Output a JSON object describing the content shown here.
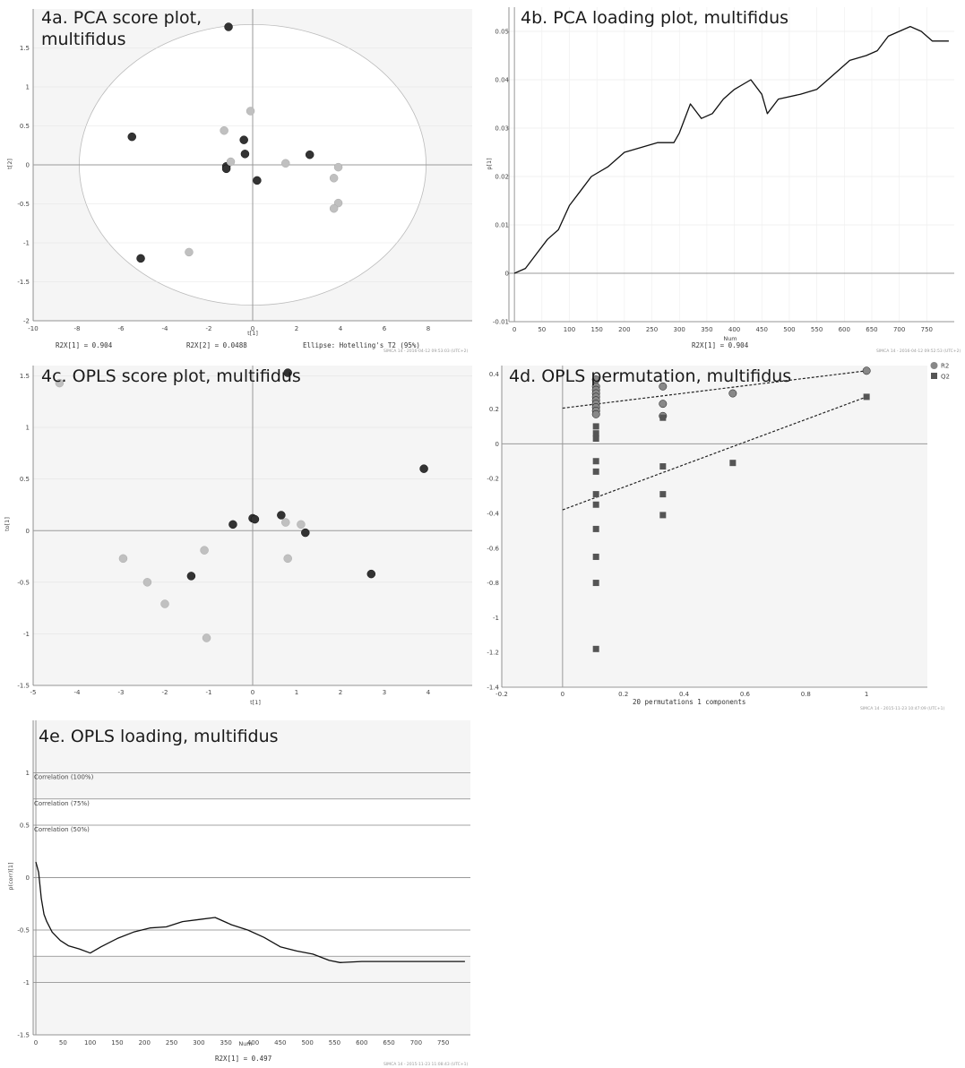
{
  "chart_data": [
    {
      "id": "p4a",
      "type": "scatter",
      "title": "4a. PCA score plot,\nmultifidus",
      "xlabel": "t[1]",
      "ylabel": "t[2]",
      "xlim": [
        -10,
        10
      ],
      "ylim": [
        -2,
        2
      ],
      "xticks": [
        -10,
        -8,
        -6,
        -4,
        -2,
        0,
        2,
        4,
        6,
        8
      ],
      "yticks": [
        -2,
        -1.5,
        -1,
        -0.5,
        0,
        0.5,
        1,
        1.5
      ],
      "ellipse": {
        "rx": 7.9,
        "ry": 1.8
      },
      "footer_left": "R2X[1] = 0.904",
      "footer_mid": "R2X[2] = 0.0488",
      "footer_right": "Ellipse: Hotelling's T2 (95%)",
      "watermark": "SIMCA 14 - 2016-04-12 09:53:03 (UTC+2)",
      "series": [
        {
          "color": "#333333",
          "points": [
            [
              -1.1,
              1.77
            ],
            [
              -5.5,
              0.36
            ],
            [
              -0.4,
              0.32
            ],
            [
              -0.35,
              0.14
            ],
            [
              -1.2,
              -0.02
            ],
            [
              -1.2,
              -0.05
            ],
            [
              2.6,
              0.13
            ],
            [
              0.2,
              -0.2
            ],
            [
              -5.1,
              -1.2
            ]
          ]
        },
        {
          "color": "#c0c0c0",
          "points": [
            [
              -0.1,
              0.69
            ],
            [
              -1.3,
              0.44
            ],
            [
              -1.0,
              0.04
            ],
            [
              1.5,
              0.02
            ],
            [
              3.9,
              -0.03
            ],
            [
              3.7,
              -0.17
            ],
            [
              3.9,
              -0.49
            ],
            [
              3.7,
              -0.56
            ],
            [
              -2.9,
              -1.12
            ]
          ]
        }
      ]
    },
    {
      "id": "p4b",
      "type": "line",
      "title": "4b. PCA loading plot, multifidus",
      "xlabel": "Num",
      "ylabel": "p[1]",
      "xlim": [
        -10,
        800
      ],
      "ylim": [
        -0.01,
        0.055
      ],
      "xticks": [
        0,
        50,
        100,
        150,
        200,
        250,
        300,
        350,
        400,
        450,
        500,
        550,
        600,
        650,
        700,
        750
      ],
      "yticks": [
        -0.01,
        0,
        0.01,
        0.02,
        0.03,
        0.04,
        0.05
      ],
      "footer_left": "R2X[1] = 0.904",
      "watermark": "SIMCA 14 - 2016-04-12 09:52:53 (UTC+2)",
      "series": [
        {
          "color": "#111111",
          "points": [
            [
              0,
              0
            ],
            [
              20,
              0.001
            ],
            [
              40,
              0.004
            ],
            [
              60,
              0.007
            ],
            [
              80,
              0.009
            ],
            [
              100,
              0.014
            ],
            [
              120,
              0.017
            ],
            [
              140,
              0.02
            ],
            [
              170,
              0.022
            ],
            [
              200,
              0.025
            ],
            [
              230,
              0.026
            ],
            [
              260,
              0.027
            ],
            [
              290,
              0.027
            ],
            [
              300,
              0.029
            ],
            [
              320,
              0.035
            ],
            [
              340,
              0.032
            ],
            [
              360,
              0.033
            ],
            [
              380,
              0.036
            ],
            [
              400,
              0.038
            ],
            [
              430,
              0.04
            ],
            [
              450,
              0.037
            ],
            [
              460,
              0.033
            ],
            [
              480,
              0.036
            ],
            [
              520,
              0.037
            ],
            [
              550,
              0.038
            ],
            [
              580,
              0.041
            ],
            [
              610,
              0.044
            ],
            [
              640,
              0.045
            ],
            [
              660,
              0.046
            ],
            [
              680,
              0.049
            ],
            [
              700,
              0.05
            ],
            [
              720,
              0.051
            ],
            [
              740,
              0.05
            ],
            [
              760,
              0.048
            ],
            [
              790,
              0.048
            ]
          ]
        }
      ]
    },
    {
      "id": "p4c",
      "type": "scatter",
      "title": "4c. OPLS score plot, multifidus",
      "xlabel": "t[1]",
      "ylabel": "to[1]",
      "xlim": [
        -5,
        5
      ],
      "ylim": [
        -1.5,
        1.6
      ],
      "xticks": [
        -5,
        -4,
        -3,
        -2,
        -1,
        0,
        1,
        2,
        3,
        4
      ],
      "yticks": [
        -1.5,
        -1,
        -0.5,
        0,
        0.5,
        1,
        1.5
      ],
      "series": [
        {
          "color": "#333333",
          "points": [
            [
              0.8,
              1.53
            ],
            [
              3.9,
              0.6
            ],
            [
              0.65,
              0.15
            ],
            [
              0,
              0.12
            ],
            [
              0.05,
              0.11
            ],
            [
              -0.45,
              0.06
            ],
            [
              1.2,
              -0.02
            ],
            [
              -1.4,
              -0.44
            ],
            [
              2.7,
              -0.42
            ]
          ]
        },
        {
          "color": "#c0c0c0",
          "points": [
            [
              -4.4,
              1.43
            ],
            [
              0.75,
              0.08
            ],
            [
              1.1,
              0.06
            ],
            [
              -1.1,
              -0.19
            ],
            [
              -2.95,
              -0.27
            ],
            [
              0.8,
              -0.27
            ],
            [
              -2.4,
              -0.5
            ],
            [
              -2.0,
              -0.71
            ],
            [
              -1.05,
              -1.04
            ]
          ]
        }
      ]
    },
    {
      "id": "p4d",
      "type": "scatter",
      "title": "4d. OPLS permutation, multifidus",
      "xlabel": "20 permutations 1 components",
      "ylabel": "",
      "xlim": [
        -0.2,
        1.2
      ],
      "ylim": [
        -1.4,
        0.45
      ],
      "xticks": [
        -0.2,
        0,
        0.2,
        0.4,
        0.6,
        0.8,
        1
      ],
      "yticks": [
        -1.4,
        -1.2,
        -1,
        -0.8,
        -0.6,
        -0.4,
        -0.2,
        0,
        0.2,
        0.4
      ],
      "legend": [
        "R2",
        "Q2"
      ],
      "legend_position": "top-right",
      "watermark": "SIMCA 14 - 2015-11-23 10:47:09 (UTC+1)",
      "regression": [
        {
          "name": "R2",
          "from": [
            0,
            0.205
          ],
          "to": [
            1,
            0.42
          ]
        },
        {
          "name": "Q2",
          "from": [
            0,
            -0.38
          ],
          "to": [
            1,
            0.27
          ]
        }
      ],
      "series": [
        {
          "name": "R2",
          "marker": "circle",
          "color": "#888888",
          "points": [
            [
              0.11,
              0.37
            ],
            [
              0.11,
              0.33
            ],
            [
              0.11,
              0.31
            ],
            [
              0.11,
              0.29
            ],
            [
              0.11,
              0.27
            ],
            [
              0.11,
              0.25
            ],
            [
              0.11,
              0.23
            ],
            [
              0.11,
              0.21
            ],
            [
              0.11,
              0.19
            ],
            [
              0.11,
              0.17
            ],
            [
              0.33,
              0.33
            ],
            [
              0.33,
              0.23
            ],
            [
              0.33,
              0.16
            ],
            [
              0.56,
              0.29
            ],
            [
              1,
              0.42
            ]
          ]
        },
        {
          "name": "Q2",
          "marker": "square",
          "color": "#555555",
          "points": [
            [
              0.11,
              0.1
            ],
            [
              0.11,
              0.06
            ],
            [
              0.11,
              0.03
            ],
            [
              0.11,
              -0.1
            ],
            [
              0.11,
              -0.16
            ],
            [
              0.11,
              -0.29
            ],
            [
              0.11,
              -0.35
            ],
            [
              0.11,
              -0.49
            ],
            [
              0.11,
              -0.65
            ],
            [
              0.11,
              -0.8
            ],
            [
              0.11,
              -1.18
            ],
            [
              0.33,
              0.15
            ],
            [
              0.33,
              -0.13
            ],
            [
              0.33,
              -0.29
            ],
            [
              0.33,
              -0.41
            ],
            [
              0.56,
              -0.11
            ],
            [
              1,
              0.27
            ]
          ]
        }
      ]
    },
    {
      "id": "p4e",
      "type": "line",
      "title": "4e. OPLS loading, multifidus",
      "xlabel": "Num",
      "ylabel": "p(corr)[1]",
      "xlim": [
        -5,
        800
      ],
      "ylim": [
        -1.5,
        1.5
      ],
      "xticks": [
        0,
        50,
        100,
        150,
        200,
        250,
        300,
        350,
        400,
        450,
        500,
        550,
        600,
        650,
        700,
        750
      ],
      "yticks": [
        -1.5,
        -1,
        -0.5,
        0,
        0.5,
        1
      ],
      "reference_lines": [
        {
          "y": 1,
          "label": "Correlation (100%)"
        },
        {
          "y": 0.75,
          "label": "Correlation (75%)"
        },
        {
          "y": 0.5,
          "label": "Correlation (50%)"
        }
      ],
      "footer_left": "R2X[1] = 0.497",
      "watermark": "SIMCA 14 - 2015-11-23 11:08:43 (UTC+1)",
      "series": [
        {
          "color": "#111111",
          "points": [
            [
              0,
              0.15
            ],
            [
              5,
              0.05
            ],
            [
              10,
              -0.2
            ],
            [
              15,
              -0.35
            ],
            [
              20,
              -0.42
            ],
            [
              30,
              -0.52
            ],
            [
              45,
              -0.6
            ],
            [
              60,
              -0.65
            ],
            [
              80,
              -0.68
            ],
            [
              100,
              -0.72
            ],
            [
              120,
              -0.66
            ],
            [
              150,
              -0.58
            ],
            [
              180,
              -0.52
            ],
            [
              210,
              -0.48
            ],
            [
              240,
              -0.47
            ],
            [
              270,
              -0.42
            ],
            [
              300,
              -0.4
            ],
            [
              330,
              -0.38
            ],
            [
              360,
              -0.45
            ],
            [
              390,
              -0.5
            ],
            [
              420,
              -0.57
            ],
            [
              450,
              -0.66
            ],
            [
              480,
              -0.7
            ],
            [
              510,
              -0.73
            ],
            [
              540,
              -0.79
            ],
            [
              560,
              -0.81
            ],
            [
              600,
              -0.8
            ],
            [
              650,
              -0.8
            ],
            [
              700,
              -0.8
            ],
            [
              750,
              -0.8
            ],
            [
              790,
              -0.8
            ]
          ]
        }
      ]
    }
  ]
}
